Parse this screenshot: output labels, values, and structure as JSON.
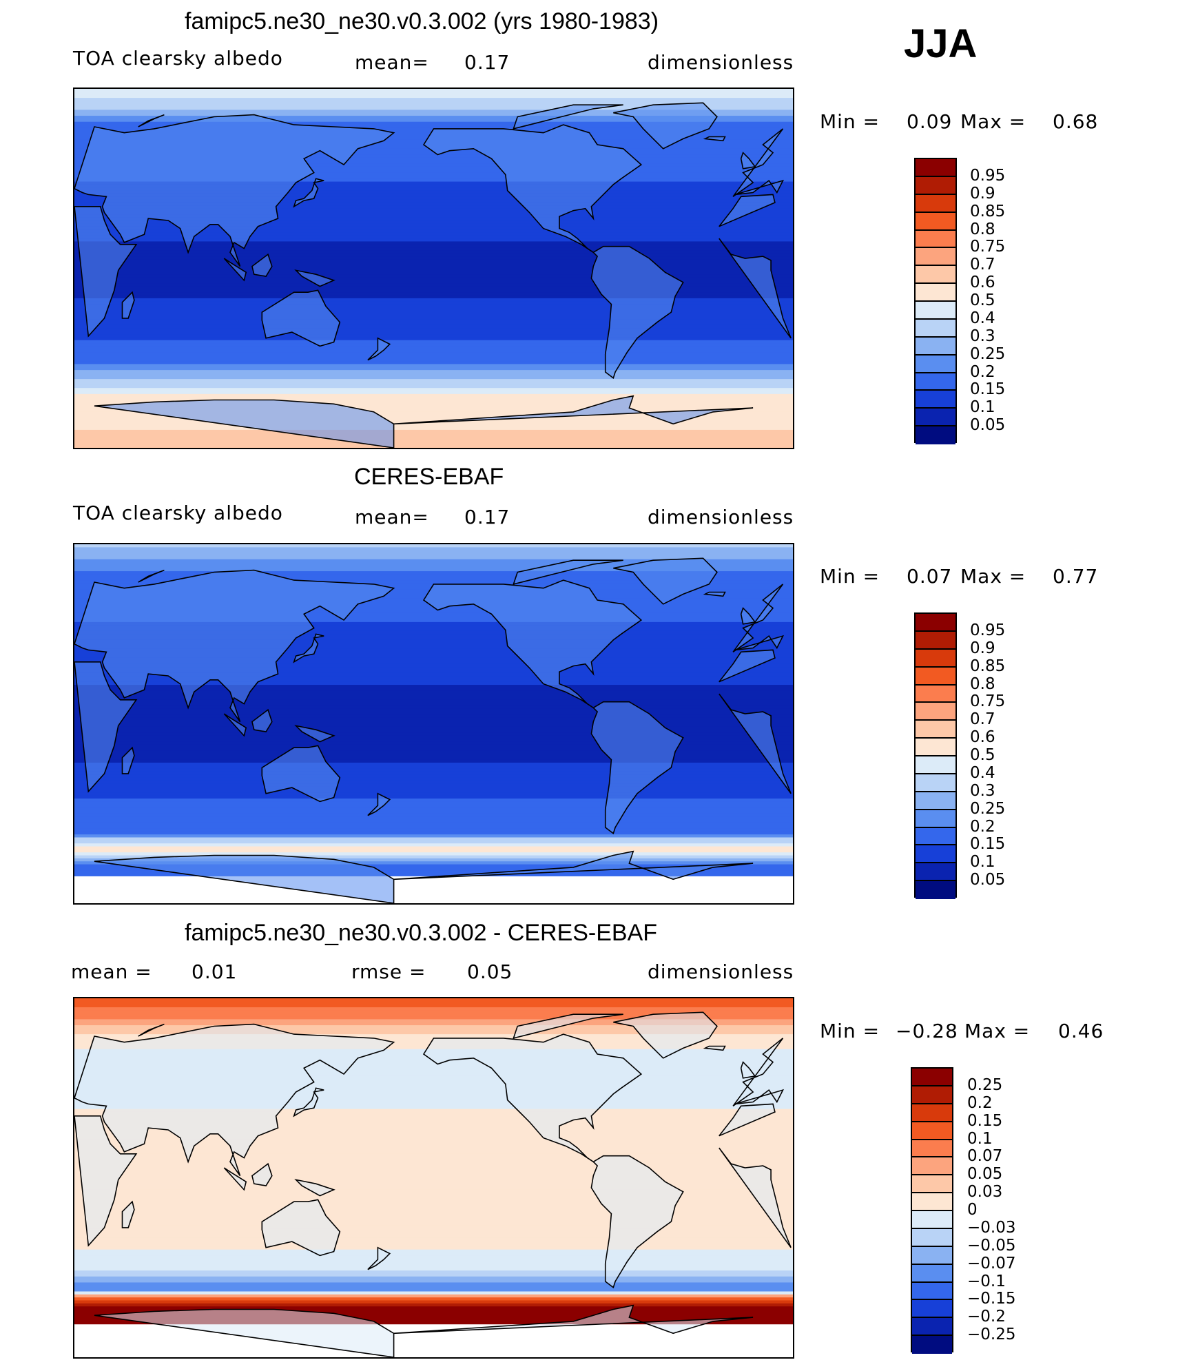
{
  "season": "JJA",
  "panels": [
    {
      "title": "famipc5.ne30_ne30.v0.3.002 (yrs 1980-1983)",
      "left_label": "TOA clearsky albedo",
      "mid_label": "mean=",
      "mid_value": "0.17",
      "right_label": "dimensionless",
      "min_label": "Min =",
      "min_value": "0.09",
      "max_label": "Max =",
      "max_value": "0.68",
      "field": "model"
    },
    {
      "title": "CERES-EBAF",
      "left_label": "TOA clearsky albedo",
      "mid_label": "mean=",
      "mid_value": "0.17",
      "right_label": "dimensionless",
      "min_label": "Min =",
      "min_value": "0.07",
      "max_label": "Max =",
      "max_value": "0.77",
      "field": "obs"
    },
    {
      "title": "famipc5.ne30_ne30.v0.3.002 - CERES-EBAF",
      "left_label": "mean =",
      "left_value": "0.01",
      "mid_label": "rmse =",
      "mid_value": "0.05",
      "right_label": "dimensionless",
      "min_label": "Min =",
      "min_value": "−0.28",
      "max_label": "Max =",
      "max_value": "0.46",
      "field": "diff"
    }
  ],
  "colorbars": {
    "albedo": {
      "labels": [
        "0.95",
        "0.9",
        "0.85",
        "0.8",
        "0.75",
        "0.7",
        "0.6",
        "0.5",
        "0.4",
        "0.3",
        "0.25",
        "0.2",
        "0.15",
        "0.1",
        "0.05"
      ],
      "colors": [
        "#8b0000",
        "#b01c04",
        "#d83a0c",
        "#f25a22",
        "#fb7d4e",
        "#fca47e",
        "#fdc8a8",
        "#fde6d3",
        "#dcebf8",
        "#b9d3f6",
        "#8ab2f2",
        "#5a8ef0",
        "#3467ec",
        "#1740d8",
        "#0a23b0",
        "#000c80"
      ]
    },
    "diff": {
      "labels": [
        "0.25",
        "0.2",
        "0.15",
        "0.1",
        "0.07",
        "0.05",
        "0.03",
        "0",
        "−0.03",
        "−0.05",
        "−0.07",
        "−0.1",
        "−0.15",
        "−0.2",
        "−0.25"
      ],
      "colors": [
        "#8b0000",
        "#b01c04",
        "#d83a0c",
        "#f25a22",
        "#fb7d4e",
        "#fca47e",
        "#fdc8a8",
        "#fde6d3",
        "#dcebf8",
        "#b9d3f6",
        "#8ab2f2",
        "#5a8ef0",
        "#3467ec",
        "#1740d8",
        "#0a23b0",
        "#000c80"
      ]
    }
  },
  "chart_data": [
    {
      "type": "heatmap",
      "title": "famipc5.ne30_ne30.v0.3.002 (yrs 1980-1983)",
      "variable": "TOA clearsky albedo",
      "units": "dimensionless",
      "mean": 0.17,
      "min": 0.09,
      "max": 0.68,
      "levels": [
        0.05,
        0.1,
        0.15,
        0.2,
        0.25,
        0.3,
        0.4,
        0.5,
        0.6,
        0.7,
        0.75,
        0.8,
        0.85,
        0.9,
        0.95
      ],
      "zonal_profile": [
        {
          "lat": 90,
          "value": 0.45
        },
        {
          "lat": 75,
          "value": 0.2
        },
        {
          "lat": 60,
          "value": 0.17
        },
        {
          "lat": 45,
          "value": 0.15
        },
        {
          "lat": 30,
          "value": 0.13
        },
        {
          "lat": 15,
          "value": 0.1
        },
        {
          "lat": 0,
          "value": 0.09
        },
        {
          "lat": -15,
          "value": 0.1
        },
        {
          "lat": -30,
          "value": 0.13
        },
        {
          "lat": -45,
          "value": 0.18
        },
        {
          "lat": -55,
          "value": 0.3
        },
        {
          "lat": -65,
          "value": 0.55
        },
        {
          "lat": -80,
          "value": 0.6
        },
        {
          "lat": -90,
          "value": 0.6
        }
      ]
    },
    {
      "type": "heatmap",
      "title": "CERES-EBAF",
      "variable": "TOA clearsky albedo",
      "units": "dimensionless",
      "mean": 0.17,
      "min": 0.07,
      "max": 0.77,
      "levels": [
        0.05,
        0.1,
        0.15,
        0.2,
        0.25,
        0.3,
        0.4,
        0.5,
        0.6,
        0.7,
        0.75,
        0.8,
        0.85,
        0.9,
        0.95
      ],
      "zonal_profile": [
        {
          "lat": 90,
          "value": 0.3
        },
        {
          "lat": 75,
          "value": 0.18
        },
        {
          "lat": 60,
          "value": 0.16
        },
        {
          "lat": 45,
          "value": 0.14
        },
        {
          "lat": 30,
          "value": 0.12
        },
        {
          "lat": 15,
          "value": 0.09
        },
        {
          "lat": 0,
          "value": 0.07
        },
        {
          "lat": -15,
          "value": 0.09
        },
        {
          "lat": -30,
          "value": 0.13
        },
        {
          "lat": -45,
          "value": 0.17
        },
        {
          "lat": -55,
          "value": 0.2
        },
        {
          "lat": -62,
          "value": 0.55
        },
        {
          "lat": -70,
          "value": 0.15
        },
        {
          "lat": -90,
          "value": null
        }
      ]
    },
    {
      "type": "heatmap",
      "title": "famipc5.ne30_ne30.v0.3.002 - CERES-EBAF",
      "units": "dimensionless",
      "mean": 0.01,
      "rmse": 0.05,
      "min": -0.28,
      "max": 0.46,
      "levels": [
        -0.25,
        -0.2,
        -0.15,
        -0.1,
        -0.07,
        -0.05,
        -0.03,
        0,
        0.03,
        0.05,
        0.07,
        0.1,
        0.15,
        0.2,
        0.25
      ],
      "zonal_profile": [
        {
          "lat": 90,
          "value": 0.12
        },
        {
          "lat": 75,
          "value": 0.04
        },
        {
          "lat": 60,
          "value": -0.02
        },
        {
          "lat": 45,
          "value": -0.02
        },
        {
          "lat": 30,
          "value": 0.01
        },
        {
          "lat": 15,
          "value": 0.02
        },
        {
          "lat": 0,
          "value": 0.02
        },
        {
          "lat": -15,
          "value": 0.02
        },
        {
          "lat": -30,
          "value": 0.01
        },
        {
          "lat": -45,
          "value": -0.02
        },
        {
          "lat": -55,
          "value": -0.1
        },
        {
          "lat": -62,
          "value": 0.2
        },
        {
          "lat": -66,
          "value": 0.3
        },
        {
          "lat": -90,
          "value": null
        }
      ]
    }
  ]
}
